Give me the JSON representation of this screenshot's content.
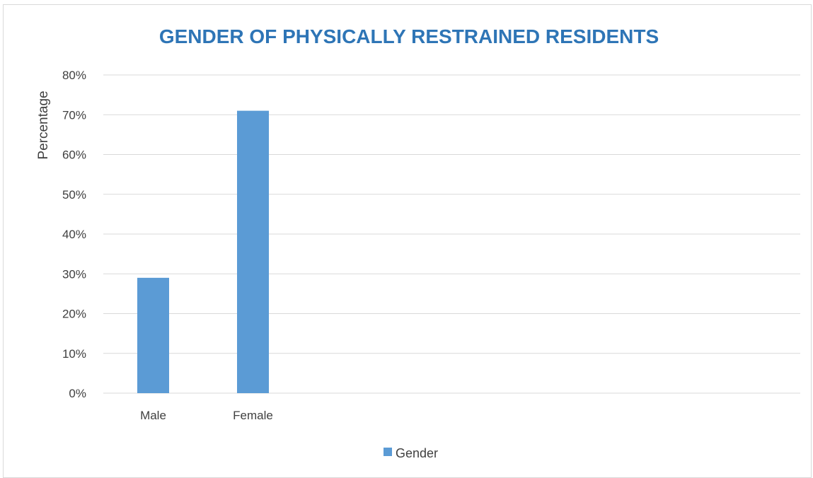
{
  "chart_data": {
    "type": "bar",
    "title": "GENDER OF PHYSICALLY RESTRAINED RESIDENTS",
    "xlabel": "",
    "ylabel": "Percentage",
    "categories": [
      "Male",
      "Female"
    ],
    "series": [
      {
        "name": "Gender",
        "values": [
          29,
          71
        ]
      }
    ],
    "ylim": [
      0,
      80
    ],
    "yticks": [
      0,
      10,
      20,
      30,
      40,
      50,
      60,
      70,
      80
    ],
    "ytick_labels": [
      "0%",
      "10%",
      "20%",
      "30%",
      "40%",
      "50%",
      "60%",
      "70%",
      "80%"
    ],
    "grid": true,
    "legend_position": "bottom"
  },
  "colors": {
    "bar": "#5b9bd5",
    "title": "#2e75b6",
    "grid": "#d9d9d9"
  }
}
